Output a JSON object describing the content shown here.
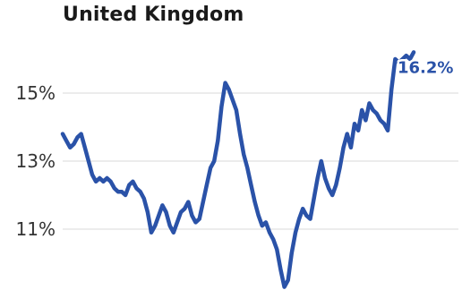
{
  "chart_data": {
    "type": "line",
    "title": "United Kingdom",
    "y_tick_labels": [
      "15%",
      "13%",
      "11%"
    ],
    "y_ticks": [
      15,
      13,
      11
    ],
    "ylim": [
      9.2,
      16.7
    ],
    "xlabel": "",
    "ylabel": "",
    "grid": "horizontal",
    "end_label": "16.2%",
    "series": [
      {
        "color": "#2a52a8",
        "values": [
          13.8,
          13.6,
          13.4,
          13.5,
          13.7,
          13.8,
          13.4,
          13.0,
          12.6,
          12.4,
          12.5,
          12.4,
          12.5,
          12.4,
          12.2,
          12.1,
          12.1,
          12.0,
          12.3,
          12.4,
          12.2,
          12.1,
          11.9,
          11.5,
          10.9,
          11.1,
          11.4,
          11.7,
          11.5,
          11.1,
          10.9,
          11.2,
          11.5,
          11.6,
          11.8,
          11.4,
          11.2,
          11.3,
          11.8,
          12.3,
          12.8,
          13.0,
          13.6,
          14.6,
          15.3,
          15.1,
          14.8,
          14.5,
          13.8,
          13.2,
          12.8,
          12.3,
          11.8,
          11.4,
          11.1,
          11.2,
          10.9,
          10.7,
          10.4,
          9.8,
          9.3,
          9.5,
          10.3,
          10.9,
          11.3,
          11.6,
          11.4,
          11.3,
          11.9,
          12.5,
          13.0,
          12.5,
          12.2,
          12.0,
          12.3,
          12.8,
          13.4,
          13.8,
          13.4,
          14.1,
          13.9,
          14.5,
          14.2,
          14.7,
          14.5,
          14.4,
          14.2,
          14.1,
          13.9,
          15.1,
          16.0,
          15.9,
          16.0,
          16.1,
          16.0,
          16.2
        ],
        "name": ""
      }
    ]
  }
}
